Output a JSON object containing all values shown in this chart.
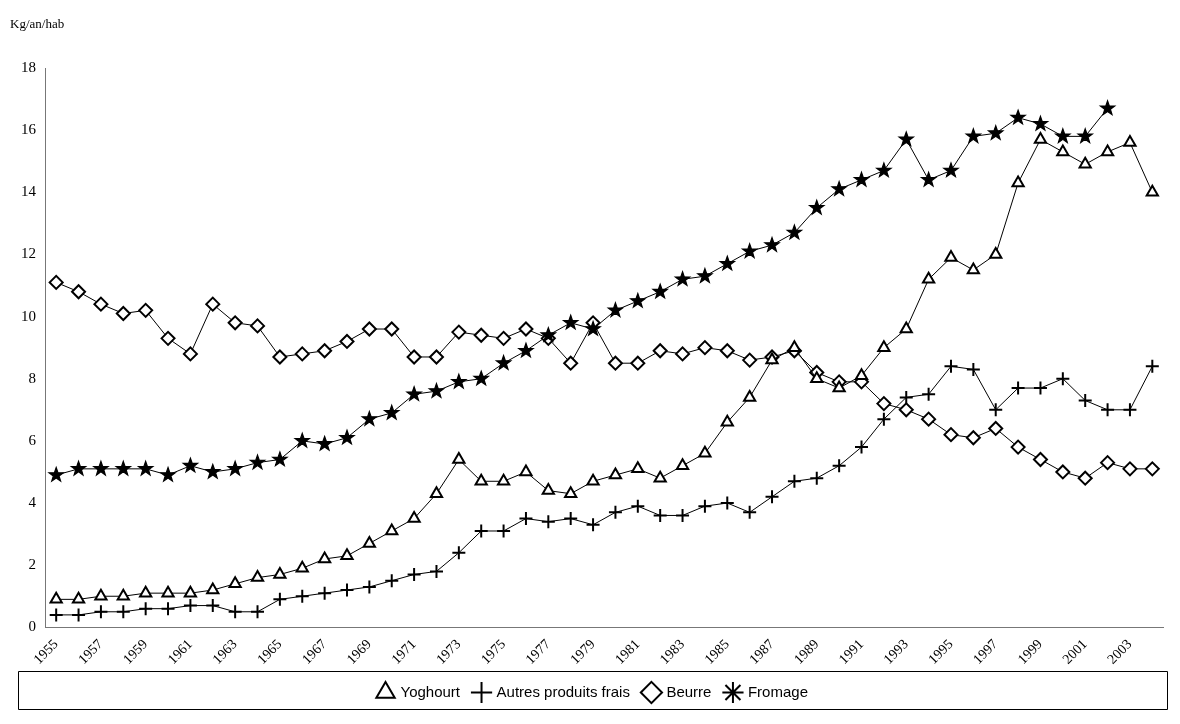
{
  "chart_data": {
    "type": "line",
    "ylabel": "Kg/an/hab",
    "categories": [
      "1955",
      null,
      "1957",
      null,
      "1959",
      null,
      "1961",
      null,
      "1963",
      null,
      "1965",
      null,
      "1967",
      null,
      "1969",
      null,
      "1971",
      null,
      "1973",
      null,
      "1975",
      null,
      "1977",
      null,
      "1979",
      null,
      "1981",
      null,
      "1983",
      null,
      "1985",
      null,
      "1987",
      null,
      "1989",
      null,
      "1991",
      null,
      "1993",
      null,
      "1995",
      null,
      "1997",
      null,
      "1999",
      null,
      "2001",
      null,
      "2003",
      null
    ],
    "series": [
      {
        "name": "Yoghourt",
        "color": "#000000",
        "marker": "triangle",
        "values": [
          0.9,
          0.9,
          1.0,
          1.0,
          1.1,
          1.1,
          1.1,
          1.2,
          1.4,
          1.6,
          1.7,
          1.9,
          2.2,
          2.3,
          2.7,
          3.1,
          3.5,
          4.3,
          5.4,
          4.7,
          4.7,
          5.0,
          4.4,
          4.3,
          4.7,
          4.9,
          5.1,
          4.8,
          5.2,
          5.6,
          6.6,
          7.4,
          8.6,
          9.0,
          8.0,
          7.7,
          8.1,
          9.0,
          9.6,
          11.2,
          11.9,
          11.5,
          12.0,
          14.3,
          15.7,
          15.3,
          14.9,
          15.3,
          15.6,
          14.0
        ]
      },
      {
        "name": "Autres produits frais",
        "color": "#000000",
        "marker": "cross",
        "values": [
          0.4,
          0.4,
          0.5,
          0.5,
          0.6,
          0.6,
          0.7,
          0.7,
          0.5,
          0.5,
          0.9,
          1.0,
          1.1,
          1.2,
          1.3,
          1.5,
          1.7,
          1.8,
          2.4,
          3.1,
          3.1,
          3.5,
          3.4,
          3.5,
          3.3,
          3.7,
          3.9,
          3.6,
          3.6,
          3.9,
          4.0,
          3.7,
          4.2,
          4.7,
          4.8,
          5.2,
          5.8,
          6.7,
          7.4,
          7.5,
          8.4,
          8.3,
          7.0,
          7.7,
          7.7,
          8.0,
          7.3,
          7.0,
          7.0,
          8.4
        ]
      },
      {
        "name": "Beurre",
        "color": "#000000",
        "marker": "diamond",
        "values": [
          11.1,
          10.8,
          10.4,
          10.1,
          10.2,
          9.3,
          8.8,
          10.4,
          9.8,
          9.7,
          8.7,
          8.8,
          8.9,
          9.2,
          9.6,
          9.6,
          8.7,
          8.7,
          9.5,
          9.4,
          9.3,
          9.6,
          9.3,
          8.5,
          9.8,
          8.5,
          8.5,
          8.9,
          8.8,
          9.0,
          8.9,
          8.6,
          8.7,
          8.9,
          8.2,
          7.9,
          7.9,
          7.2,
          7.0,
          6.7,
          6.2,
          6.1,
          6.4,
          5.8,
          5.4,
          5.0,
          4.8,
          5.3,
          5.1,
          5.1
        ]
      },
      {
        "name": "Fromage",
        "color": "#000000",
        "marker": "star",
        "values": [
          4.9,
          5.1,
          5.1,
          5.1,
          5.1,
          4.9,
          5.2,
          5.0,
          5.1,
          5.3,
          5.4,
          6.0,
          5.9,
          6.1,
          6.7,
          6.9,
          7.5,
          7.6,
          7.9,
          8.0,
          8.5,
          8.9,
          9.4,
          9.8,
          9.6,
          10.2,
          10.5,
          10.8,
          11.2,
          11.3,
          11.7,
          12.1,
          12.3,
          12.7,
          13.5,
          14.1,
          14.4,
          14.7,
          15.7,
          14.4,
          14.7,
          15.8,
          15.9,
          16.4,
          16.2,
          15.8,
          15.8,
          16.7,
          null,
          null
        ]
      }
    ],
    "ylim": [
      0,
      18
    ],
    "yticks": [
      0,
      2,
      4,
      6,
      8,
      10,
      12,
      14,
      16,
      18
    ],
    "grid": false,
    "legend": "bottom",
    "line_style": "solid"
  }
}
